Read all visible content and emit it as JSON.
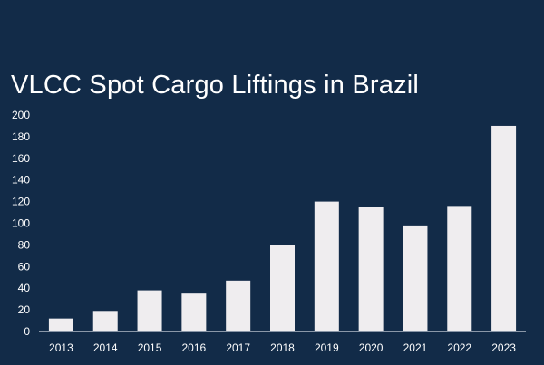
{
  "chart_data": {
    "type": "bar",
    "title": "VLCC Spot Cargo Liftings in Brazil",
    "xlabel": "",
    "ylabel": "",
    "categories": [
      "2013",
      "2014",
      "2015",
      "2016",
      "2017",
      "2018",
      "2019",
      "2020",
      "2021",
      "2022",
      "2023"
    ],
    "values": [
      12,
      19,
      38,
      35,
      47,
      80,
      120,
      115,
      98,
      116,
      190
    ],
    "ylim": [
      0,
      200
    ],
    "yticks": [
      0,
      20,
      40,
      60,
      80,
      100,
      120,
      140,
      160,
      180,
      200
    ],
    "grid": false,
    "legend": "none",
    "colors": {
      "background": "#122b48",
      "bar": "#efedef",
      "axis": "#8a97a8",
      "text": "#ffffff"
    }
  }
}
